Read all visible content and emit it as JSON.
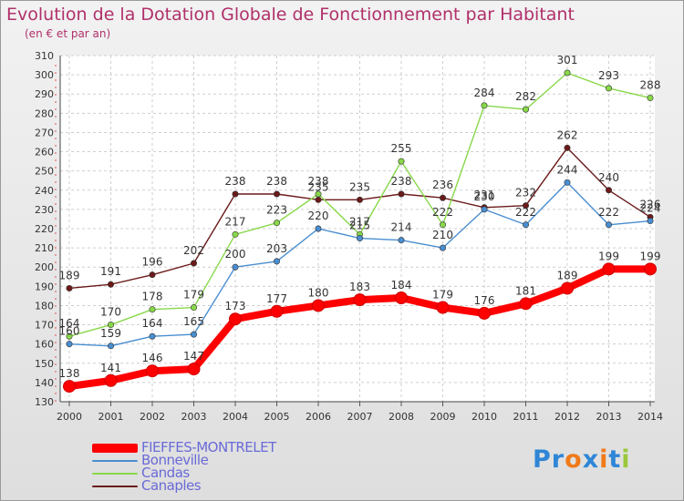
{
  "chart_data": {
    "type": "line",
    "title": "Evolution de la Dotation Globale de Fonctionnement par Habitant",
    "subtitle": "(en € et par an)",
    "x": [
      "2000",
      "2001",
      "2002",
      "2003",
      "2004",
      "2005",
      "2006",
      "2007",
      "2008",
      "2009",
      "2010",
      "2011",
      "2012",
      "2013",
      "2014"
    ],
    "ylim": [
      130,
      310
    ],
    "yticks": [
      130,
      140,
      150,
      160,
      170,
      180,
      190,
      200,
      210,
      220,
      230,
      240,
      250,
      260,
      270,
      280,
      290,
      300,
      310
    ],
    "grid": true,
    "legend_position": "bottom-left",
    "series": [
      {
        "name": "FIEFFES-MONTRELET",
        "color": "#ff0000",
        "values": [
          138,
          141,
          146,
          147,
          173,
          177,
          180,
          183,
          184,
          179,
          176,
          181,
          189,
          199,
          199
        ]
      },
      {
        "name": "Bonneville",
        "color": "#4a8ed0",
        "values": [
          160,
          159,
          164,
          165,
          200,
          203,
          220,
          215,
          214,
          210,
          230,
          222,
          244,
          222,
          224
        ]
      },
      {
        "name": "Candas",
        "color": "#88d84a",
        "values": [
          164,
          170,
          178,
          179,
          217,
          223,
          238,
          217,
          255,
          222,
          284,
          282,
          301,
          293,
          288
        ]
      },
      {
        "name": "Canaples",
        "color": "#6b1a1a",
        "values": [
          189,
          191,
          196,
          202,
          238,
          238,
          235,
          235,
          238,
          236,
          231,
          232,
          262,
          240,
          226
        ]
      }
    ]
  },
  "logo": {
    "text": "Proxiti",
    "letters": [
      "P",
      "r",
      "o",
      "x",
      "i",
      "t",
      "i"
    ],
    "colors": [
      "#2f86d6",
      "#2f86d6",
      "#f07a1a",
      "#2f86d6",
      "#f07a1a",
      "#2f86d6",
      "#9ac83a"
    ]
  }
}
